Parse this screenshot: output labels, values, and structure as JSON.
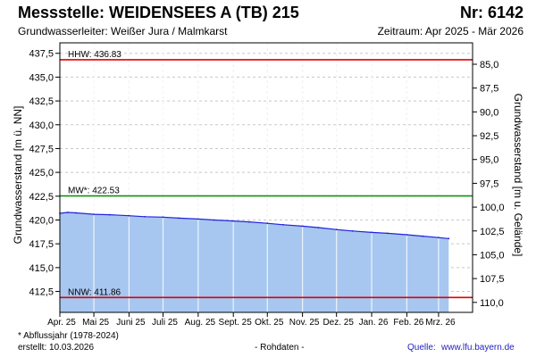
{
  "header": {
    "title": "Messstelle: WEIDENSEES A (TB) 215",
    "number": "Nr: 6142",
    "aquifer": "Grundwasserleiter:   Weißer Jura / Malmkarst",
    "period": "Zeitraum: Apr 2025 - Mär 2026"
  },
  "footer": {
    "footnote": "* Abflussjahr (1978-2024)",
    "created": "erstellt:  10.03.2026",
    "raw": "- Rohdaten -",
    "source_label": "Quelle:",
    "source_url": "www.lfu.bayern.de"
  },
  "colors": {
    "area": "#a7c7f0",
    "series_line": "#2222dd",
    "extreme_line": "#e00000",
    "mean_line": "#009000",
    "grid": "#c8c8c8"
  },
  "chart_data": {
    "type": "area",
    "title": "",
    "ylabel_left": "Grundwasserstand [m ü. NN]",
    "ylabel_right": "Grundwasserstand [m u. Gelände]",
    "ylim": [
      410.3,
      438.6
    ],
    "left_ticks": [
      412.5,
      415,
      417.5,
      420,
      422.5,
      425,
      427.5,
      430,
      432.5,
      435,
      437.5
    ],
    "left_tick_labels": [
      "412,5",
      "415,0",
      "417,5",
      "420,0",
      "422,5",
      "425,0",
      "427,5",
      "430,0",
      "432,5",
      "435,0",
      "437,5"
    ],
    "right_ticks": [
      85,
      87.5,
      90,
      92.5,
      95,
      97.5,
      100,
      102.5,
      105,
      107.5,
      110
    ],
    "right_tick_labels": [
      "85,0",
      "87,5",
      "90,0",
      "92,5",
      "95,0",
      "97,5",
      "100,0",
      "102,5",
      "105,0",
      "107,5",
      "110,0"
    ],
    "right_axis_reference": 521.35,
    "x_ticks": [
      "2025-04-01",
      "2025-05-01",
      "2025-06-01",
      "2025-07-01",
      "2025-08-01",
      "2025-09-01",
      "2025-10-01",
      "2025-11-01",
      "2025-12-01",
      "2026-01-01",
      "2026-02-01",
      "2026-03-01"
    ],
    "x_tick_labels": [
      "Apr. 25",
      "Mai 25",
      "Juni 25",
      "Juli 25",
      "Aug. 25",
      "Sept. 25",
      "Okt. 25",
      "Nov. 25",
      "Dez. 25",
      "Jan. 26",
      "Feb. 26",
      "Mrz. 26"
    ],
    "xlim": [
      "2025-04-01",
      "2026-03-31"
    ],
    "grid": true,
    "reference_lines": [
      {
        "label": "HHW: 436.83",
        "value": 436.83,
        "color_key": "extreme_line"
      },
      {
        "label": "MW*: 422.53",
        "value": 422.53,
        "color_key": "mean_line"
      },
      {
        "label": "NNW: 411.86",
        "value": 411.86,
        "color_key": "extreme_line"
      }
    ],
    "series": [
      {
        "x": [
          "2025-04-01",
          "2025-04-08",
          "2025-04-15",
          "2025-05-01",
          "2025-05-15",
          "2025-06-01",
          "2025-06-15",
          "2025-07-01",
          "2025-07-15",
          "2025-08-01",
          "2025-08-15",
          "2025-09-01",
          "2025-09-15",
          "2025-10-01",
          "2025-10-15",
          "2025-11-01",
          "2025-11-15",
          "2025-12-01",
          "2025-12-15",
          "2026-01-01",
          "2026-01-15",
          "2026-02-01",
          "2026-02-15",
          "2026-03-01",
          "2026-03-10"
        ],
        "y": [
          420.7,
          420.8,
          420.75,
          420.6,
          420.55,
          420.45,
          420.35,
          420.3,
          420.2,
          420.1,
          420.0,
          419.9,
          419.8,
          419.65,
          419.5,
          419.35,
          419.2,
          419.0,
          418.85,
          418.7,
          418.6,
          418.45,
          418.3,
          418.15,
          418.05
        ]
      }
    ]
  }
}
